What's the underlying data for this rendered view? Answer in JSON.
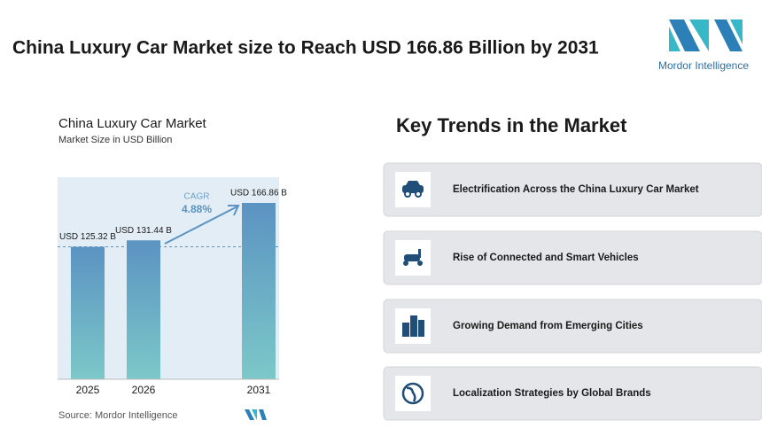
{
  "header": {
    "title": "China Luxury Car Market size to Reach USD 166.86 Billion by 2031",
    "logo_text": "Mordor Intelligence"
  },
  "chart_data": {
    "type": "bar",
    "title": "China Luxury Car Market",
    "subtitle": "Market Size in USD Billion",
    "categories": [
      "2025",
      "2026",
      "2031"
    ],
    "values": [
      125.32,
      131.44,
      166.86
    ],
    "value_labels": [
      "USD 125.32 B",
      "USD 131.44 B",
      "USD 166.86 B"
    ],
    "annotation": {
      "label": "CAGR",
      "value": "4.88%"
    },
    "colors": [
      "#5b93c2",
      "#7cc8c8"
    ],
    "source": "Source: Mordor Intelligence"
  },
  "key_trends": {
    "title": "Key Trends in the Market",
    "items": [
      "Electrification Across the China Luxury Car Market",
      "Rise of Connected and Smart Vehicles",
      "Growing Demand from Emerging Cities",
      "Localization Strategies by Global Brands"
    ]
  }
}
